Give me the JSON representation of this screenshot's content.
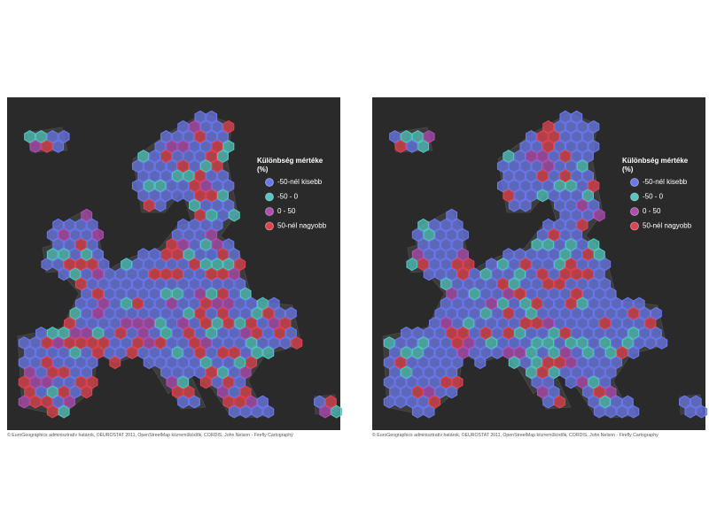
{
  "panels": [
    {
      "legend": {
        "title": [
          "Különbség mértéke",
          "(%)"
        ],
        "items": [
          {
            "label": "-50-nél kisebb",
            "color": "#6b78ec"
          },
          {
            "label": "-50 - 0",
            "color": "#52c8c0"
          },
          {
            "label": "0 - 50",
            "color": "#b04cb4"
          },
          {
            "label": "50-nél nagyobb",
            "color": "#e2424e"
          }
        ]
      },
      "attribution": "© EuroGeographics adminisztratív határok, ©EUROSTAT 2011, OpenStreetMap közreműködők, CORDIS, John Nelson - Firefly Cartography"
    },
    {
      "legend": {
        "title": [
          "Különbség mértéke",
          "(%)"
        ],
        "items": [
          {
            "label": "-50-nél kisebb",
            "color": "#6b78ec"
          },
          {
            "label": "-50 - 0",
            "color": "#52c8c0"
          },
          {
            "label": "0 - 50",
            "color": "#b04cb4"
          },
          {
            "label": "50-nél nagyobb",
            "color": "#e2424e"
          }
        ]
      },
      "attribution": "© EuroGeographics adminisztratív határok, ©EUROSTAT 2011, OpenStreetMap közreműködők, CORDIS, John Nelson - Firefly Cartography"
    }
  ]
}
